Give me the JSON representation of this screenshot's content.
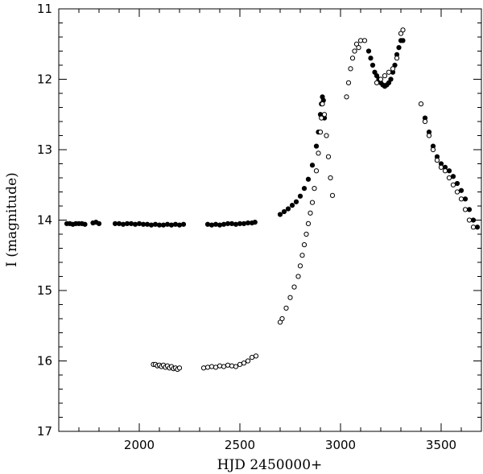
{
  "chart_data": {
    "type": "scatter",
    "title": "",
    "xlabel": "HJD 2450000+",
    "ylabel": "I (magnitude)",
    "xlim": [
      1600,
      3700
    ],
    "ylim": [
      17,
      11
    ],
    "y_inverted": true,
    "x_ticks": [
      2000,
      2500,
      3000,
      3500
    ],
    "x_tick_labels": [
      "2000",
      "2500",
      "3000",
      "3500"
    ],
    "y_ticks": [
      11,
      12,
      13,
      14,
      15,
      16,
      17
    ],
    "y_tick_labels": [
      "11",
      "12",
      "13",
      "14",
      "15",
      "16",
      "17"
    ],
    "grid": false,
    "legend": "none",
    "series": [
      {
        "marker": "filled-circle",
        "color": "#000000",
        "points": [
          [
            1640,
            14.05
          ],
          [
            1655,
            14.05
          ],
          [
            1670,
            14.06
          ],
          [
            1685,
            14.05
          ],
          [
            1700,
            14.05
          ],
          [
            1715,
            14.05
          ],
          [
            1730,
            14.06
          ],
          [
            1770,
            14.04
          ],
          [
            1785,
            14.03
          ],
          [
            1800,
            14.05
          ],
          [
            1880,
            14.05
          ],
          [
            1900,
            14.05
          ],
          [
            1920,
            14.06
          ],
          [
            1940,
            14.05
          ],
          [
            1960,
            14.05
          ],
          [
            1980,
            14.06
          ],
          [
            2000,
            14.05
          ],
          [
            2020,
            14.06
          ],
          [
            2040,
            14.06
          ],
          [
            2060,
            14.07
          ],
          [
            2080,
            14.06
          ],
          [
            2100,
            14.07
          ],
          [
            2120,
            14.07
          ],
          [
            2140,
            14.06
          ],
          [
            2160,
            14.07
          ],
          [
            2180,
            14.06
          ],
          [
            2200,
            14.07
          ],
          [
            2220,
            14.06
          ],
          [
            2340,
            14.06
          ],
          [
            2360,
            14.07
          ],
          [
            2380,
            14.06
          ],
          [
            2400,
            14.07
          ],
          [
            2420,
            14.06
          ],
          [
            2440,
            14.05
          ],
          [
            2460,
            14.05
          ],
          [
            2480,
            14.06
          ],
          [
            2500,
            14.05
          ],
          [
            2520,
            14.05
          ],
          [
            2540,
            14.04
          ],
          [
            2560,
            14.04
          ],
          [
            2575,
            14.03
          ],
          [
            2700,
            13.92
          ],
          [
            2720,
            13.88
          ],
          [
            2740,
            13.84
          ],
          [
            2760,
            13.79
          ],
          [
            2780,
            13.74
          ],
          [
            2800,
            13.66
          ],
          [
            2820,
            13.55
          ],
          [
            2840,
            13.42
          ],
          [
            2860,
            13.22
          ],
          [
            2880,
            12.95
          ],
          [
            2890,
            12.75
          ],
          [
            2900,
            12.5
          ],
          [
            2905,
            12.35
          ],
          [
            2910,
            12.25
          ],
          [
            2915,
            12.3
          ],
          [
            2920,
            12.55
          ],
          [
            3140,
            11.6
          ],
          [
            3150,
            11.7
          ],
          [
            3160,
            11.8
          ],
          [
            3170,
            11.9
          ],
          [
            3180,
            11.95
          ],
          [
            3190,
            12.0
          ],
          [
            3200,
            12.05
          ],
          [
            3210,
            12.08
          ],
          [
            3220,
            12.1
          ],
          [
            3230,
            12.08
          ],
          [
            3240,
            12.05
          ],
          [
            3250,
            12.0
          ],
          [
            3260,
            11.9
          ],
          [
            3270,
            11.8
          ],
          [
            3280,
            11.65
          ],
          [
            3290,
            11.55
          ],
          [
            3300,
            11.45
          ],
          [
            3310,
            11.45
          ],
          [
            3420,
            12.55
          ],
          [
            3440,
            12.75
          ],
          [
            3460,
            12.95
          ],
          [
            3480,
            13.1
          ],
          [
            3500,
            13.2
          ],
          [
            3520,
            13.25
          ],
          [
            3540,
            13.3
          ],
          [
            3560,
            13.38
          ],
          [
            3580,
            13.48
          ],
          [
            3600,
            13.58
          ],
          [
            3620,
            13.7
          ],
          [
            3640,
            13.85
          ],
          [
            3660,
            14.0
          ],
          [
            3680,
            14.1
          ]
        ]
      },
      {
        "marker": "open-circle",
        "color": "#000000",
        "points": [
          [
            2070,
            16.05
          ],
          [
            2080,
            16.05
          ],
          [
            2090,
            16.07
          ],
          [
            2100,
            16.06
          ],
          [
            2110,
            16.08
          ],
          [
            2120,
            16.06
          ],
          [
            2130,
            16.09
          ],
          [
            2140,
            16.07
          ],
          [
            2150,
            16.1
          ],
          [
            2160,
            16.08
          ],
          [
            2170,
            16.11
          ],
          [
            2180,
            16.1
          ],
          [
            2190,
            16.12
          ],
          [
            2200,
            16.1
          ],
          [
            2320,
            16.1
          ],
          [
            2340,
            16.09
          ],
          [
            2360,
            16.08
          ],
          [
            2380,
            16.09
          ],
          [
            2400,
            16.07
          ],
          [
            2420,
            16.08
          ],
          [
            2440,
            16.06
          ],
          [
            2460,
            16.07
          ],
          [
            2480,
            16.08
          ],
          [
            2500,
            16.05
          ],
          [
            2520,
            16.03
          ],
          [
            2540,
            16.0
          ],
          [
            2560,
            15.95
          ],
          [
            2580,
            15.93
          ],
          [
            2700,
            15.45
          ],
          [
            2710,
            15.4
          ],
          [
            2730,
            15.25
          ],
          [
            2750,
            15.1
          ],
          [
            2770,
            14.95
          ],
          [
            2790,
            14.8
          ],
          [
            2800,
            14.65
          ],
          [
            2810,
            14.5
          ],
          [
            2820,
            14.35
          ],
          [
            2830,
            14.2
          ],
          [
            2840,
            14.05
          ],
          [
            2850,
            13.9
          ],
          [
            2860,
            13.75
          ],
          [
            2870,
            13.55
          ],
          [
            2880,
            13.3
          ],
          [
            2890,
            13.05
          ],
          [
            2900,
            12.75
          ],
          [
            2905,
            12.55
          ],
          [
            2910,
            12.35
          ],
          [
            2920,
            12.5
          ],
          [
            2930,
            12.8
          ],
          [
            2940,
            13.1
          ],
          [
            2950,
            13.4
          ],
          [
            2960,
            13.65
          ],
          [
            3030,
            12.25
          ],
          [
            3040,
            12.05
          ],
          [
            3050,
            11.85
          ],
          [
            3060,
            11.7
          ],
          [
            3070,
            11.6
          ],
          [
            3080,
            11.5
          ],
          [
            3090,
            11.55
          ],
          [
            3100,
            11.45
          ],
          [
            3120,
            11.45
          ],
          [
            3180,
            12.05
          ],
          [
            3200,
            12.0
          ],
          [
            3220,
            11.95
          ],
          [
            3240,
            11.9
          ],
          [
            3260,
            11.85
          ],
          [
            3280,
            11.7
          ],
          [
            3300,
            11.35
          ],
          [
            3310,
            11.3
          ],
          [
            3400,
            12.35
          ],
          [
            3420,
            12.6
          ],
          [
            3440,
            12.8
          ],
          [
            3460,
            13.0
          ],
          [
            3480,
            13.15
          ],
          [
            3500,
            13.25
          ],
          [
            3520,
            13.3
          ],
          [
            3540,
            13.4
          ],
          [
            3560,
            13.5
          ],
          [
            3580,
            13.6
          ],
          [
            3600,
            13.7
          ],
          [
            3620,
            13.85
          ],
          [
            3640,
            14.0
          ],
          [
            3660,
            14.1
          ]
        ]
      }
    ]
  }
}
